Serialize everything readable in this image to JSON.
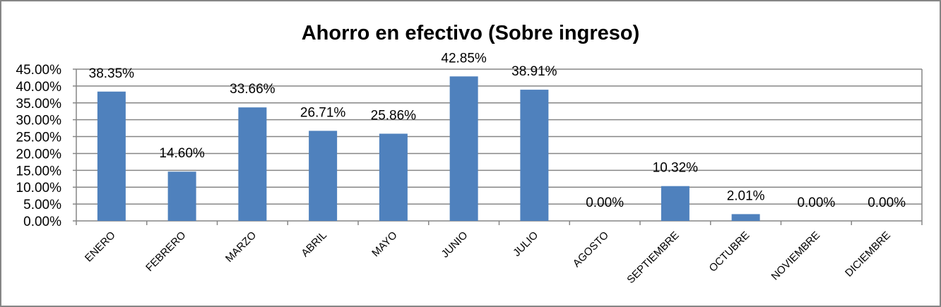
{
  "chart_data": {
    "type": "bar",
    "title": "Ahorro en efectivo (Sobre ingreso)",
    "xlabel": "",
    "ylabel": "",
    "categories": [
      "ENERO",
      "FEBRERO",
      "MARZO",
      "ABRIL",
      "MAYO",
      "JUNIO",
      "JULIO",
      "AGOSTO",
      "SEPTIEMBRE",
      "OCTUBRE",
      "NOVIEMBRE",
      "DICIEMBRE"
    ],
    "values": [
      38.35,
      14.6,
      33.66,
      26.71,
      25.86,
      42.85,
      38.91,
      0.0,
      10.32,
      2.01,
      0.0,
      0.0
    ],
    "data_labels": [
      "38.35%",
      "14.60%",
      "33.66%",
      "26.71%",
      "25.86%",
      "42.85%",
      "38.91%",
      "0.00%",
      "10.32%",
      "2.01%",
      "0.00%",
      "0.00%"
    ],
    "ylim": [
      0,
      45
    ],
    "yticks": [
      "0.00%",
      "5.00%",
      "10.00%",
      "15.00%",
      "20.00%",
      "25.00%",
      "30.00%",
      "35.00%",
      "40.00%",
      "45.00%"
    ],
    "grid": true,
    "legend": "none",
    "bar_color": "#4F81BD",
    "grid_color": "#868686"
  }
}
